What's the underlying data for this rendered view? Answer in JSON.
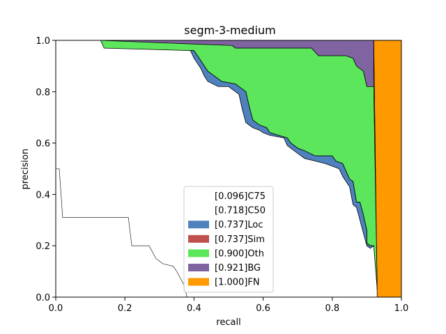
{
  "chart_data": {
    "type": "area",
    "title": "segm-3-medium",
    "xlabel": "recall",
    "ylabel": "precision",
    "xlim": [
      0,
      1
    ],
    "ylim": [
      0,
      1
    ],
    "xticks": [
      "0.0",
      "0.2",
      "0.4",
      "0.6",
      "0.8",
      "1.0"
    ],
    "yticks": [
      "0.0",
      "0.2",
      "0.4",
      "0.6",
      "0.8",
      "1.0"
    ],
    "grid": false,
    "legend_position": "lower-center",
    "series": [
      {
        "name": "[1.000]FN",
        "color": "#ff9900",
        "points": [
          [
            0.92,
            1.0
          ],
          [
            1.0,
            1.0
          ],
          [
            1.0,
            0.0
          ],
          [
            0.93,
            0.0
          ]
        ]
      },
      {
        "name": "[0.921]BG",
        "color": "#8064a2",
        "points": [
          [
            0.13,
            1.0
          ],
          [
            0.92,
            1.0
          ],
          [
            0.92,
            0.82
          ],
          [
            0.9,
            0.82
          ],
          [
            0.89,
            0.88
          ],
          [
            0.87,
            0.9
          ],
          [
            0.86,
            0.93
          ],
          [
            0.84,
            0.94
          ],
          [
            0.8,
            0.94
          ],
          [
            0.76,
            0.94
          ],
          [
            0.74,
            0.97
          ],
          [
            0.7,
            0.97
          ],
          [
            0.58,
            0.97
          ],
          [
            0.52,
            0.97
          ],
          [
            0.51,
            0.98
          ],
          [
            0.14,
            0.98
          ]
        ]
      },
      {
        "name": "[0.900]Oth",
        "color": "#5ce65c",
        "points": [
          [
            0.13,
            1.0
          ],
          [
            0.51,
            0.98
          ],
          [
            0.52,
            0.97
          ],
          [
            0.7,
            0.97
          ],
          [
            0.74,
            0.97
          ],
          [
            0.76,
            0.94
          ],
          [
            0.84,
            0.94
          ],
          [
            0.86,
            0.93
          ],
          [
            0.87,
            0.9
          ],
          [
            0.89,
            0.88
          ],
          [
            0.9,
            0.82
          ],
          [
            0.92,
            0.82
          ],
          [
            0.93,
            0.03
          ],
          [
            0.92,
            0.2
          ],
          [
            0.91,
            0.2
          ],
          [
            0.9,
            0.21
          ],
          [
            0.9,
            0.26
          ],
          [
            0.89,
            0.32
          ],
          [
            0.88,
            0.37
          ],
          [
            0.87,
            0.37
          ],
          [
            0.86,
            0.45
          ],
          [
            0.85,
            0.46
          ],
          [
            0.84,
            0.49
          ],
          [
            0.83,
            0.52
          ],
          [
            0.81,
            0.53
          ],
          [
            0.8,
            0.55
          ],
          [
            0.75,
            0.55
          ],
          [
            0.72,
            0.57
          ],
          [
            0.7,
            0.58
          ],
          [
            0.68,
            0.6
          ],
          [
            0.67,
            0.62
          ],
          [
            0.62,
            0.64
          ],
          [
            0.61,
            0.66
          ],
          [
            0.59,
            0.67
          ],
          [
            0.57,
            0.69
          ],
          [
            0.56,
            0.74
          ],
          [
            0.55,
            0.8
          ],
          [
            0.54,
            0.81
          ],
          [
            0.52,
            0.83
          ],
          [
            0.48,
            0.84
          ],
          [
            0.46,
            0.86
          ],
          [
            0.44,
            0.88
          ],
          [
            0.42,
            0.92
          ],
          [
            0.41,
            0.94
          ],
          [
            0.4,
            0.96
          ],
          [
            0.14,
            0.97
          ]
        ]
      },
      {
        "name": "[0.737]Loc",
        "color": "#4f81bd",
        "points": [
          [
            0.4,
            0.96
          ],
          [
            0.41,
            0.94
          ],
          [
            0.42,
            0.92
          ],
          [
            0.44,
            0.88
          ],
          [
            0.46,
            0.86
          ],
          [
            0.48,
            0.84
          ],
          [
            0.52,
            0.83
          ],
          [
            0.54,
            0.81
          ],
          [
            0.55,
            0.8
          ],
          [
            0.56,
            0.74
          ],
          [
            0.57,
            0.69
          ],
          [
            0.59,
            0.67
          ],
          [
            0.61,
            0.66
          ],
          [
            0.62,
            0.64
          ],
          [
            0.67,
            0.62
          ],
          [
            0.68,
            0.6
          ],
          [
            0.7,
            0.58
          ],
          [
            0.72,
            0.57
          ],
          [
            0.75,
            0.55
          ],
          [
            0.8,
            0.55
          ],
          [
            0.81,
            0.53
          ],
          [
            0.83,
            0.52
          ],
          [
            0.84,
            0.49
          ],
          [
            0.85,
            0.46
          ],
          [
            0.86,
            0.45
          ],
          [
            0.87,
            0.37
          ],
          [
            0.88,
            0.37
          ],
          [
            0.89,
            0.32
          ],
          [
            0.9,
            0.26
          ],
          [
            0.9,
            0.21
          ],
          [
            0.91,
            0.2
          ],
          [
            0.92,
            0.2
          ],
          [
            0.92,
            0.2
          ],
          [
            0.91,
            0.19
          ],
          [
            0.9,
            0.2
          ],
          [
            0.89,
            0.25
          ],
          [
            0.88,
            0.3
          ],
          [
            0.87,
            0.35
          ],
          [
            0.86,
            0.36
          ],
          [
            0.85,
            0.43
          ],
          [
            0.84,
            0.45
          ],
          [
            0.83,
            0.47
          ],
          [
            0.82,
            0.5
          ],
          [
            0.8,
            0.51
          ],
          [
            0.78,
            0.52
          ],
          [
            0.75,
            0.53
          ],
          [
            0.72,
            0.54
          ],
          [
            0.7,
            0.56
          ],
          [
            0.69,
            0.57
          ],
          [
            0.67,
            0.59
          ],
          [
            0.66,
            0.62
          ],
          [
            0.62,
            0.63
          ],
          [
            0.6,
            0.64
          ],
          [
            0.59,
            0.65
          ],
          [
            0.57,
            0.66
          ],
          [
            0.55,
            0.68
          ],
          [
            0.54,
            0.73
          ],
          [
            0.53,
            0.79
          ],
          [
            0.52,
            0.8
          ],
          [
            0.5,
            0.82
          ],
          [
            0.47,
            0.82
          ],
          [
            0.44,
            0.84
          ],
          [
            0.43,
            0.86
          ],
          [
            0.42,
            0.89
          ],
          [
            0.41,
            0.91
          ],
          [
            0.4,
            0.93
          ],
          [
            0.39,
            0.96
          ]
        ]
      },
      {
        "name": "[0.737]Sim",
        "color": "#c0504d",
        "points": []
      },
      {
        "name": "[0.718]C50",
        "color": "#ffffff",
        "points": []
      },
      {
        "name": "[0.096]C75",
        "color": "#ffffff",
        "points": [
          [
            0.0,
            0.5
          ],
          [
            0.01,
            0.5
          ],
          [
            0.02,
            0.31
          ],
          [
            0.21,
            0.31
          ],
          [
            0.22,
            0.2
          ],
          [
            0.27,
            0.2
          ],
          [
            0.29,
            0.15
          ],
          [
            0.3,
            0.14
          ],
          [
            0.31,
            0.13
          ],
          [
            0.34,
            0.12
          ],
          [
            0.35,
            0.1
          ],
          [
            0.37,
            0.05
          ],
          [
            0.38,
            0.0
          ]
        ]
      }
    ],
    "legend": [
      "[0.096]C75",
      "[0.718]C50",
      "[0.737]Loc",
      "[0.737]Sim",
      "[0.900]Oth",
      "[0.921]BG",
      "[1.000]FN"
    ]
  }
}
